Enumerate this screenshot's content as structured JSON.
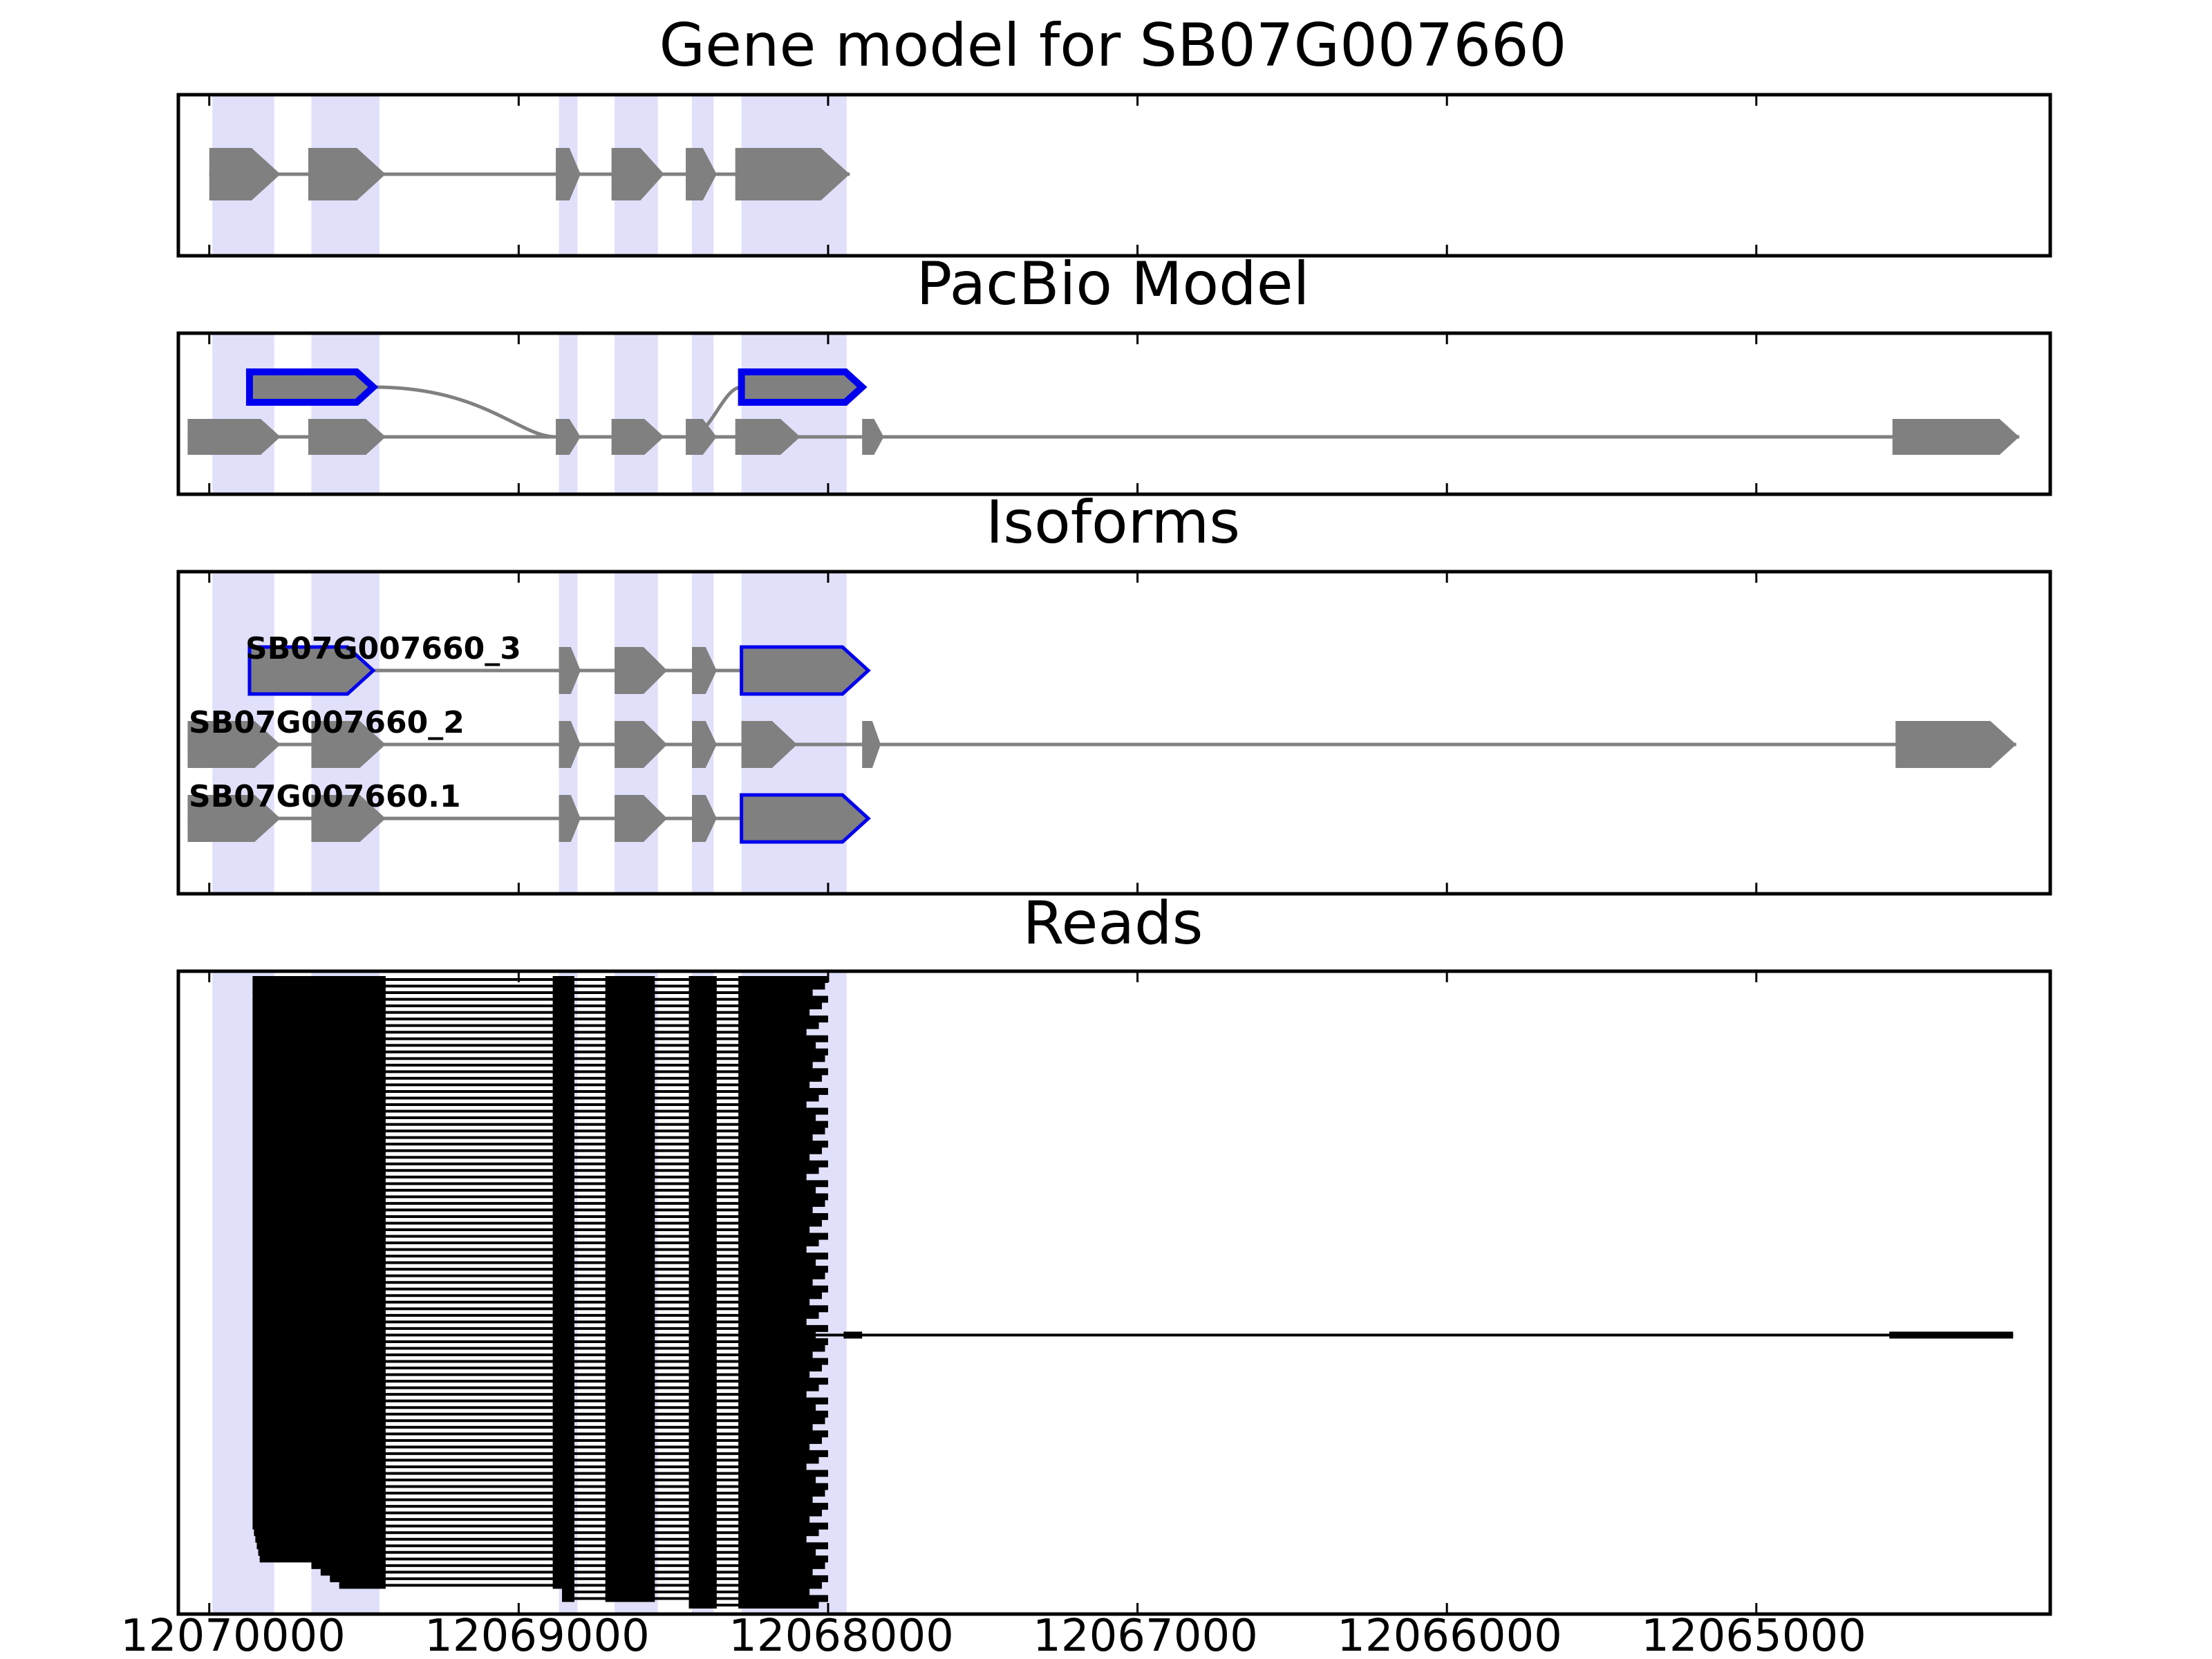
{
  "chart_data": [
    {
      "type": "gene-track",
      "title": "Gene model for SB07G007660",
      "xaxis_reversed": true,
      "xlim": [
        12070100,
        12064050
      ],
      "exon_regions": [
        [
          12069990,
          12069790
        ],
        [
          12069670,
          12069450
        ],
        [
          12068870,
          12068810
        ],
        [
          12068690,
          12068550
        ],
        [
          12068440,
          12068370
        ],
        [
          12068280,
          12067940
        ]
      ],
      "models": [
        {
          "exons": [
            [
              12070000,
              12069770
            ],
            [
              12069680,
              12069430
            ],
            [
              12068880,
              12068800
            ],
            [
              12068700,
              12068530
            ],
            [
              12068460,
              12068360
            ],
            [
              12068300,
              12067930
            ]
          ]
        }
      ]
    },
    {
      "type": "gene-track",
      "title": "PacBio Model",
      "xaxis_reversed": true,
      "models": [
        {
          "highlight": true,
          "exons": [
            [
              12069870,
              12069470
            ],
            [
              12068280,
              12067890
            ]
          ]
        },
        {
          "exons": [
            [
              12070070,
              12069770
            ],
            [
              12069680,
              12069430
            ],
            [
              12068880,
              12068800
            ],
            [
              12068700,
              12068530
            ],
            [
              12068460,
              12068360
            ],
            [
              12068300,
              12068090
            ],
            [
              12067890,
              12067820
            ],
            [
              12064560,
              12064150
            ]
          ]
        }
      ]
    },
    {
      "type": "gene-track",
      "title": "Isoforms",
      "xaxis_reversed": true,
      "models": [
        {
          "name": "SB07G007660_3",
          "highlight_exons": [
            0,
            4
          ],
          "exons": [
            [
              12069870,
              12069470
            ],
            [
              12068870,
              12068800
            ],
            [
              12068690,
              12068520
            ],
            [
              12068440,
              12068360
            ],
            [
              12068280,
              12067870
            ]
          ]
        },
        {
          "name": "SB07G007660_2",
          "exons": [
            [
              12070070,
              12069770
            ],
            [
              12069670,
              12069430
            ],
            [
              12068870,
              12068800
            ],
            [
              12068690,
              12068520
            ],
            [
              12068440,
              12068360
            ],
            [
              12068280,
              12068100
            ],
            [
              12067890,
              12067830
            ],
            [
              12064550,
              12064160
            ]
          ]
        },
        {
          "name": "SB07G007660.1",
          "highlight_exons": [
            5
          ],
          "exons": [
            [
              12070070,
              12069770
            ],
            [
              12069670,
              12069430
            ],
            [
              12068870,
              12068800
            ],
            [
              12068690,
              12068520
            ],
            [
              12068440,
              12068360
            ],
            [
              12068280,
              12067870
            ]
          ]
        }
      ]
    },
    {
      "type": "read-alignments",
      "title": "Reads",
      "xaxis_reversed": true,
      "xticks": [
        12070000,
        12069000,
        12068000,
        12067000,
        12066000,
        12065000
      ],
      "xticklabels": [
        "12070000",
        "12069000",
        "12068000",
        "12067000",
        "12066000",
        "12065000"
      ],
      "read_count": 96,
      "read_blocks": [
        [
          12069860,
          12069430
        ],
        [
          12068890,
          12068820
        ],
        [
          12068720,
          12068560
        ],
        [
          12068450,
          12068360
        ],
        [
          12068290,
          12068000
        ]
      ],
      "long_read_extra_blocks": [
        [
          12067950,
          12067890
        ],
        [
          12064570,
          12064170
        ]
      ]
    }
  ],
  "colors": {
    "exon_fill": "#808080",
    "highlight_outline": "#0000ee",
    "region_shade": "#e0e0fb",
    "read": "#000000",
    "intron": "#808080"
  }
}
